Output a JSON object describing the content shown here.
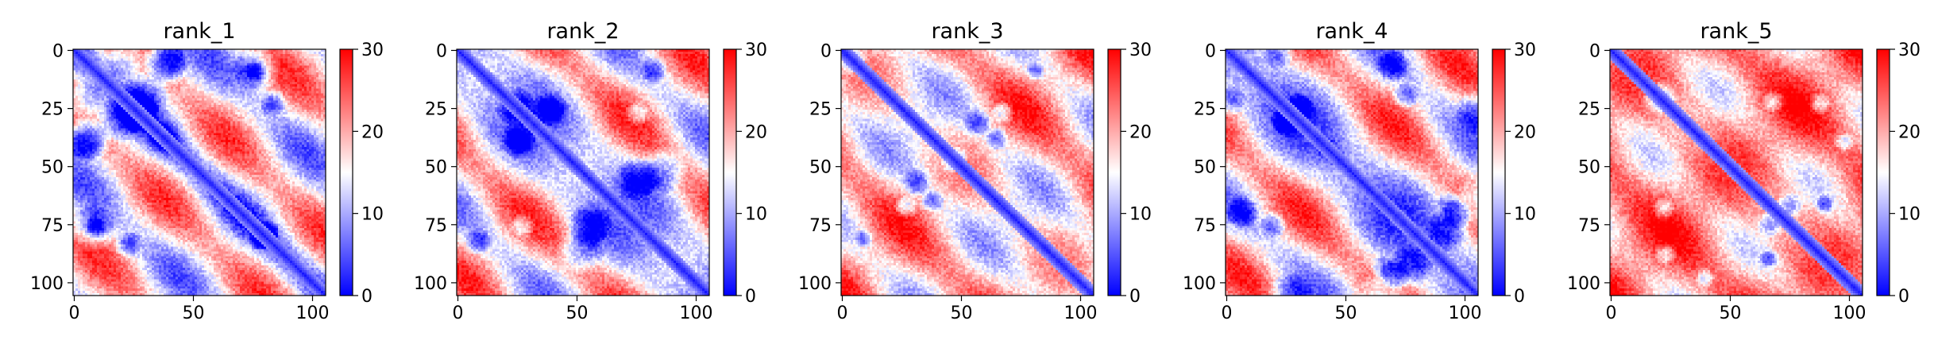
{
  "chart_data": [
    {
      "type": "heatmap",
      "title": "rank_1",
      "matrix_size": 106,
      "x_ticks": [
        0,
        50,
        100
      ],
      "y_ticks": [
        0,
        25,
        50,
        75,
        100
      ],
      "colorbar": {
        "min": 0,
        "max": 30,
        "ticks": [
          0,
          10,
          20,
          30
        ],
        "colormap": "bwr"
      },
      "pattern": {
        "diag_width": 5,
        "offdiag_mean": 16,
        "band_amplitude": 8,
        "patch_count": 14,
        "seed": 11
      }
    },
    {
      "type": "heatmap",
      "title": "rank_2",
      "matrix_size": 106,
      "x_ticks": [
        0,
        50,
        100
      ],
      "y_ticks": [
        0,
        25,
        50,
        75,
        100
      ],
      "colorbar": {
        "min": 0,
        "max": 30,
        "ticks": [
          0,
          10,
          20,
          30
        ],
        "colormap": "bwr"
      },
      "pattern": {
        "diag_width": 5,
        "offdiag_mean": 17,
        "band_amplitude": 8,
        "patch_count": 14,
        "seed": 23
      }
    },
    {
      "type": "heatmap",
      "title": "rank_3",
      "matrix_size": 106,
      "x_ticks": [
        0,
        50,
        100
      ],
      "y_ticks": [
        0,
        25,
        50,
        75,
        100
      ],
      "colorbar": {
        "min": 0,
        "max": 30,
        "ticks": [
          0,
          10,
          20,
          30
        ],
        "colormap": "bwr"
      },
      "pattern": {
        "diag_width": 5,
        "offdiag_mean": 19,
        "band_amplitude": 7,
        "patch_count": 12,
        "seed": 37
      }
    },
    {
      "type": "heatmap",
      "title": "rank_4",
      "matrix_size": 106,
      "x_ticks": [
        0,
        50,
        100
      ],
      "y_ticks": [
        0,
        25,
        50,
        75,
        100
      ],
      "colorbar": {
        "min": 0,
        "max": 30,
        "ticks": [
          0,
          10,
          20,
          30
        ],
        "colormap": "bwr"
      },
      "pattern": {
        "diag_width": 5,
        "offdiag_mean": 17,
        "band_amplitude": 8,
        "patch_count": 14,
        "seed": 41
      }
    },
    {
      "type": "heatmap",
      "title": "rank_5",
      "matrix_size": 106,
      "x_ticks": [
        0,
        50,
        100
      ],
      "y_ticks": [
        0,
        25,
        50,
        75,
        100
      ],
      "colorbar": {
        "min": 0,
        "max": 30,
        "ticks": [
          0,
          10,
          20,
          30
        ],
        "colormap": "bwr"
      },
      "pattern": {
        "diag_width": 5,
        "offdiag_mean": 22,
        "band_amplitude": 6,
        "patch_count": 8,
        "seed": 53
      }
    }
  ]
}
